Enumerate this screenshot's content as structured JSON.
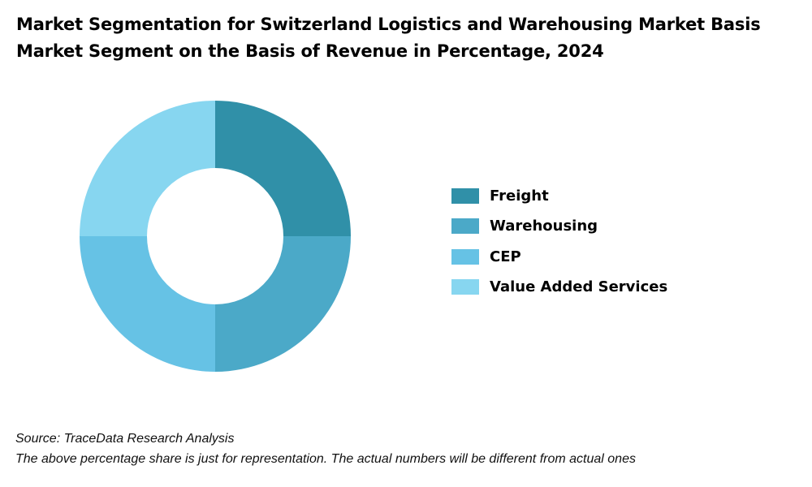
{
  "title": {
    "line1": "Market Segmentation for Switzerland Logistics and Warehousing Market Basis",
    "line2": "Market Segment on the Basis of Revenue in Percentage, 2024"
  },
  "chart_data": {
    "type": "pie",
    "variant": "donut",
    "title": "Market Segmentation for Switzerland Logistics and Warehousing Market Basis Market Segment on the Basis of Revenue in Percentage, 2024",
    "categories": [
      "Freight",
      "Warehousing",
      "CEP",
      "Value Added Services"
    ],
    "values": [
      25,
      25,
      25,
      25
    ],
    "colors": [
      "#3090A8",
      "#4BA9C8",
      "#66C2E5",
      "#87D6F0"
    ],
    "legend_position": "right"
  },
  "footer": {
    "source": "Source: TraceData Research Analysis",
    "note": "The above percentage share is just for representation. The actual numbers will be different from actual ones"
  }
}
